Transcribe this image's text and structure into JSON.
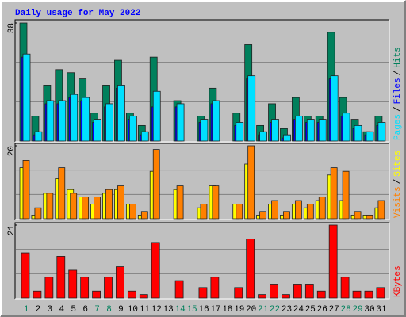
{
  "title": "Daily usage for May 2022",
  "chart_data": {
    "type": "bar",
    "categories": [
      "1",
      "2",
      "3",
      "4",
      "5",
      "6",
      "7",
      "8",
      "9",
      "10",
      "11",
      "12",
      "13",
      "14",
      "15",
      "16",
      "17",
      "18",
      "19",
      "20",
      "21",
      "22",
      "23",
      "24",
      "25",
      "26",
      "27",
      "28",
      "29",
      "30",
      "31"
    ],
    "weekend_color": "#00805c",
    "weekend_indices": [
      0,
      6,
      7,
      13,
      14,
      20,
      21,
      27,
      28
    ],
    "separator": "/",
    "panels": [
      {
        "ylim": [
          0,
          38
        ],
        "yticks": [
          38
        ],
        "series": [
          {
            "name": "Hits",
            "color": "#00805c",
            "values": [
              38,
              8,
              18,
              23,
              22,
              20,
              9,
              18,
              26,
              9,
              5,
              27,
              0,
              13,
              0,
              8,
              17,
              0,
              9,
              31,
              5,
              12,
              4,
              14,
              8,
              8,
              35,
              14,
              7,
              3,
              8
            ]
          },
          {
            "name": "Files",
            "color": "#0000ff",
            "values": [
              27,
              2,
              12,
              12,
              14,
              13,
              6,
              11,
              17,
              7,
              2,
              11,
              0,
              11,
              0,
              6,
              12,
              0,
              5,
              20,
              2,
              6,
              1,
              7,
              6,
              6,
              20,
              8,
              4,
              2,
              5
            ]
          },
          {
            "name": "Pages",
            "color": "#00e0ff",
            "values": [
              28,
              3,
              13,
              13,
              15,
              14,
              7,
              12,
              18,
              8,
              3,
              16,
              0,
              12,
              0,
              7,
              13,
              0,
              6,
              21,
              3,
              7,
              2,
              8,
              7,
              7,
              21,
              9,
              5,
              3,
              6
            ]
          }
        ]
      },
      {
        "ylim": [
          0,
          20
        ],
        "yticks": [
          20
        ],
        "series": [
          {
            "name": "Sites",
            "color": "#ffff00",
            "values": [
              14,
              1,
              7,
              11,
              8,
              6,
              4,
              7,
              8,
              4,
              1,
              13,
              0,
              8,
              0,
              3,
              9,
              0,
              4,
              15,
              1,
              4,
              1,
              4,
              3,
              5,
              12,
              5,
              1,
              1,
              3
            ]
          },
          {
            "name": "Visits",
            "color": "#ff8000",
            "values": [
              16,
              3,
              7,
              14,
              7,
              6,
              6,
              8,
              9,
              4,
              2,
              19,
              0,
              9,
              0,
              4,
              9,
              0,
              4,
              20,
              2,
              5,
              2,
              5,
              4,
              6,
              14,
              13,
              2,
              1,
              5
            ]
          }
        ]
      },
      {
        "ylim": [
          0,
          21
        ],
        "yticks": [
          21
        ],
        "series": [
          {
            "name": "KBytes",
            "color": "#ff0000",
            "values": [
              13,
              2,
              6,
              12,
              8,
              6,
              2,
              6,
              9,
              2,
              1,
              16,
              0,
              5,
              0,
              3,
              6,
              0,
              3,
              17,
              1,
              4,
              1,
              4,
              4,
              2,
              21,
              6,
              2,
              2,
              3
            ]
          }
        ]
      }
    ]
  }
}
